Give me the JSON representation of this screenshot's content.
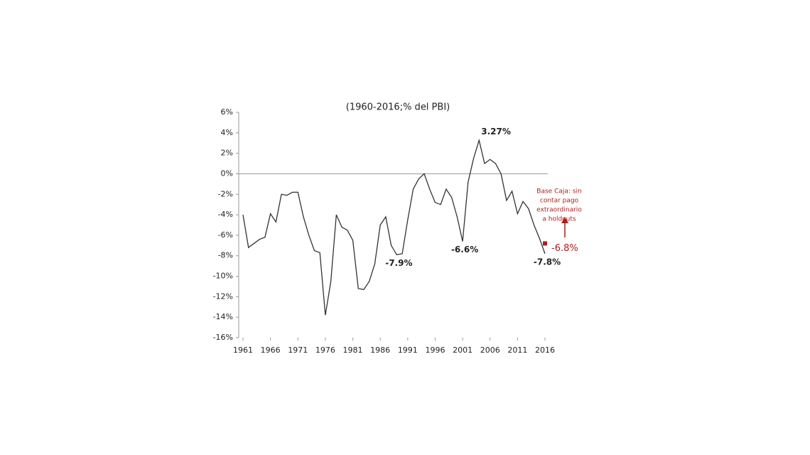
{
  "chart_data": {
    "type": "line",
    "title": "(1960-2016;% del PBI)",
    "x": [
      1961,
      1962,
      1963,
      1964,
      1965,
      1966,
      1967,
      1968,
      1969,
      1970,
      1971,
      1972,
      1973,
      1974,
      1975,
      1976,
      1977,
      1978,
      1979,
      1980,
      1981,
      1982,
      1983,
      1984,
      1985,
      1986,
      1987,
      1988,
      1989,
      1990,
      1991,
      1992,
      1993,
      1994,
      1995,
      1996,
      1997,
      1998,
      1999,
      2000,
      2001,
      2002,
      2003,
      2004,
      2005,
      2006,
      2007,
      2008,
      2009,
      2010,
      2011,
      2012,
      2013,
      2014,
      2015,
      2016
    ],
    "values": [
      -4.0,
      -7.2,
      -6.8,
      -6.4,
      -6.2,
      -3.9,
      -4.7,
      -2.0,
      -2.1,
      -1.8,
      -1.8,
      -4.2,
      -6.0,
      -7.5,
      -7.7,
      -13.8,
      -10.5,
      -4.0,
      -5.2,
      -5.5,
      -6.5,
      -11.2,
      -11.3,
      -10.5,
      -8.8,
      -5.0,
      -4.2,
      -7.0,
      -7.9,
      -7.8,
      -4.5,
      -1.5,
      -0.5,
      0.0,
      -1.5,
      -2.8,
      -3.0,
      -1.5,
      -2.3,
      -4.2,
      -6.6,
      -0.8,
      1.5,
      3.27,
      1.0,
      1.4,
      1.0,
      0.0,
      -2.6,
      -1.7,
      -3.9,
      -2.7,
      -3.4,
      -5.0,
      -6.3,
      -7.8
    ],
    "value_labels": [
      null,
      null,
      null,
      null,
      null,
      null,
      null,
      null,
      null,
      null,
      null,
      null,
      null,
      null,
      null,
      null,
      null,
      null,
      null,
      null,
      null,
      null,
      null,
      null,
      null,
      null,
      null,
      null,
      "-7.9%",
      null,
      null,
      null,
      null,
      null,
      null,
      null,
      null,
      null,
      null,
      null,
      "-6.6%",
      null,
      null,
      "3.27%",
      null,
      null,
      null,
      null,
      null,
      null,
      null,
      null,
      null,
      null,
      null,
      "-7.8%"
    ],
    "color": "#333333",
    "xlim": [
      1961,
      2016
    ],
    "xticks": [
      1961,
      1966,
      1971,
      1976,
      1981,
      1986,
      1991,
      1996,
      2001,
      2006,
      2011,
      2016
    ],
    "ylim": [
      -16,
      6
    ],
    "yticks": [
      {
        "value": 6,
        "label": "6%"
      },
      {
        "value": 4,
        "label": "4%"
      },
      {
        "value": 2,
        "label": "2%"
      },
      {
        "value": 0,
        "label": "0%"
      },
      {
        "value": -2,
        "label": "-2%"
      },
      {
        "value": -4,
        "label": "-4%"
      },
      {
        "value": -6,
        "label": "-6%"
      },
      {
        "value": -8,
        "label": "-8%"
      },
      {
        "value": -10,
        "label": "-10%"
      },
      {
        "value": -12,
        "label": "-12%"
      },
      {
        "value": -14,
        "label": "-14%"
      },
      {
        "value": -16,
        "label": "-16%"
      }
    ],
    "highlight": {
      "x": 2016,
      "value": -6.8,
      "label": "-6.8%",
      "color": "#b01c1c",
      "annotation": [
        "Base Caja: sin",
        "contar pago",
        "extraordinario",
        "a holdouts"
      ]
    }
  }
}
